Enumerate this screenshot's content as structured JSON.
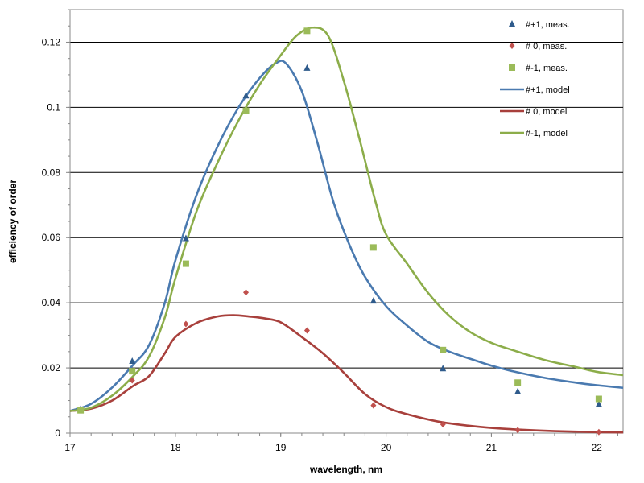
{
  "colors": {
    "plus1": "#2f5b8c",
    "plus1_line": "#4a7ab0",
    "zero": "#c0504d",
    "zero_line": "#a8403c",
    "minus1": "#9bbb59",
    "minus1_line": "#8cad4a",
    "grid": "#000000"
  },
  "chart_data": {
    "type": "scatter",
    "title": "",
    "xlabel": "wavelength, nm",
    "ylabel": "efficiency of order",
    "xlim": [
      17,
      22.25
    ],
    "ylim": [
      0,
      0.13
    ],
    "grid": "horizontal",
    "legend_position": "top-right",
    "x_ticks": [
      "17",
      "18",
      "19",
      "20",
      "21",
      "22"
    ],
    "y_ticks": [
      "0",
      "0.02",
      "0.04",
      "0.06",
      "0.08",
      "0.1",
      "0.12"
    ],
    "series": [
      {
        "name": "#+1, meas.",
        "kind": "marker",
        "marker": "triangle",
        "color_key": "plus1",
        "x": [
          17.1,
          17.59,
          18.1,
          18.67,
          19.25,
          19.88,
          20.54,
          21.25,
          22.02
        ],
        "y": [
          0.0073,
          0.022,
          0.0597,
          0.1035,
          0.112,
          0.0405,
          0.0197,
          0.0127,
          0.0088
        ]
      },
      {
        "name": "# 0, meas.",
        "kind": "marker",
        "marker": "diamond",
        "color_key": "zero",
        "x": [
          17.1,
          17.59,
          18.1,
          18.67,
          19.25,
          19.88,
          20.54,
          21.25,
          22.02
        ],
        "y": [
          0.0072,
          0.0162,
          0.0335,
          0.0432,
          0.0315,
          0.0085,
          0.0027,
          0.0009,
          0.0003
        ]
      },
      {
        "name": "#-1, meas.",
        "kind": "marker",
        "marker": "square",
        "color_key": "minus1",
        "x": [
          17.1,
          17.59,
          18.1,
          18.67,
          19.25,
          19.88,
          20.54,
          21.25,
          22.02
        ],
        "y": [
          0.007,
          0.019,
          0.052,
          0.099,
          0.1235,
          0.057,
          0.0255,
          0.0155,
          0.0105
        ]
      },
      {
        "name": "#+1, model",
        "kind": "line",
        "color_key": "plus1_line",
        "x": [
          17,
          17.2,
          17.4,
          17.6,
          17.75,
          17.9,
          18.0,
          18.2,
          18.4,
          18.6,
          18.8,
          18.95,
          19.05,
          19.2,
          19.35,
          19.5,
          19.65,
          19.8,
          20.0,
          20.2,
          20.4,
          20.6,
          20.8,
          21.0,
          21.2,
          21.5,
          21.8,
          22.0,
          22.25
        ],
        "y": [
          0.0068,
          0.009,
          0.014,
          0.021,
          0.027,
          0.04,
          0.053,
          0.073,
          0.088,
          0.1,
          0.109,
          0.1135,
          0.1135,
          0.105,
          0.089,
          0.071,
          0.058,
          0.048,
          0.039,
          0.033,
          0.028,
          0.025,
          0.0228,
          0.0207,
          0.019,
          0.017,
          0.0155,
          0.0147,
          0.0139
        ]
      },
      {
        "name": "# 0, model",
        "kind": "line",
        "color_key": "zero_line",
        "x": [
          17,
          17.2,
          17.4,
          17.6,
          17.75,
          17.9,
          18.0,
          18.2,
          18.4,
          18.55,
          18.7,
          18.85,
          19.0,
          19.2,
          19.4,
          19.6,
          19.8,
          20.0,
          20.2,
          20.5,
          20.8,
          21.0,
          21.3,
          21.6,
          22.0,
          22.25
        ],
        "y": [
          0.0068,
          0.0075,
          0.01,
          0.0145,
          0.0175,
          0.0245,
          0.0295,
          0.0338,
          0.0358,
          0.0362,
          0.0358,
          0.0352,
          0.034,
          0.0295,
          0.0245,
          0.0185,
          0.012,
          0.008,
          0.0058,
          0.0035,
          0.0022,
          0.0016,
          0.001,
          0.0006,
          0.0003,
          0.0002
        ]
      },
      {
        "name": "#-1, model",
        "kind": "line",
        "color_key": "minus1_line",
        "x": [
          17,
          17.2,
          17.4,
          17.6,
          17.75,
          17.9,
          18.0,
          18.2,
          18.4,
          18.6,
          18.8,
          19.0,
          19.15,
          19.3,
          19.45,
          19.6,
          19.75,
          19.9,
          20.0,
          20.2,
          20.4,
          20.6,
          20.8,
          21.0,
          21.2,
          21.5,
          21.8,
          22.0,
          22.25
        ],
        "y": [
          0.0068,
          0.0078,
          0.0115,
          0.0175,
          0.0235,
          0.0355,
          0.0475,
          0.068,
          0.083,
          0.096,
          0.107,
          0.116,
          0.122,
          0.1245,
          0.122,
          0.108,
          0.09,
          0.071,
          0.061,
          0.052,
          0.043,
          0.036,
          0.031,
          0.0277,
          0.0255,
          0.0225,
          0.0203,
          0.0188,
          0.0178
        ]
      }
    ],
    "legend": [
      {
        "label": "#+1, meas.",
        "symbol": "triangle",
        "color_key": "plus1"
      },
      {
        "label": "# 0, meas.",
        "symbol": "diamond",
        "color_key": "zero"
      },
      {
        "label": "#-1, meas.",
        "symbol": "square",
        "color_key": "minus1"
      },
      {
        "label": "#+1, model",
        "symbol": "line",
        "color_key": "plus1_line"
      },
      {
        "label": "# 0, model",
        "symbol": "line",
        "color_key": "zero_line"
      },
      {
        "label": "#-1, model",
        "symbol": "line",
        "color_key": "minus1_line"
      }
    ]
  }
}
